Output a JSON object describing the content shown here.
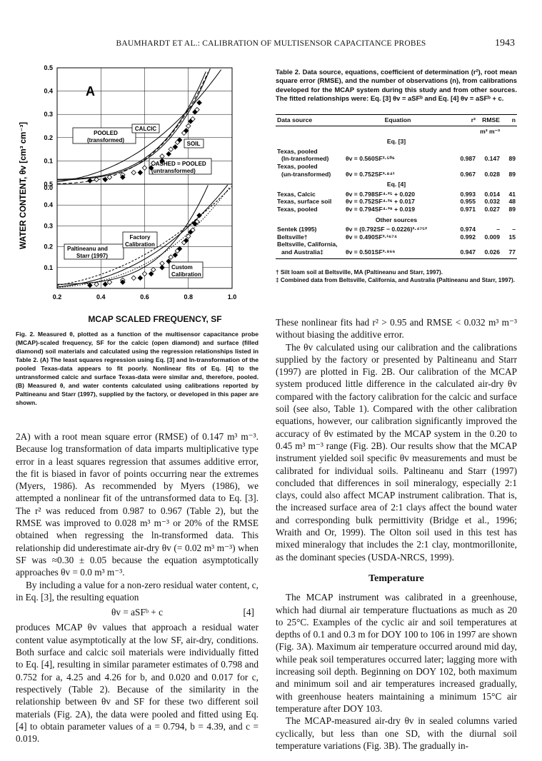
{
  "header": {
    "running_title": "BAUMHARDT ET AL.: CALIBRATION OF MULTISENSOR CAPACITANCE PROBES",
    "page_number": "1943"
  },
  "figure": {
    "y_axis_label": "WATER CONTENT, θv [cm³ cm⁻³]",
    "x_axis_label": "MCAP SCALED FREQUENCY, SF",
    "x_ticks": [
      "0.2",
      "0.4",
      "0.6",
      "0.8",
      "1.0"
    ],
    "panel_a": {
      "letter": "A",
      "y_ticks": [
        "0.0",
        "0.1",
        "0.2",
        "0.3",
        "0.4",
        "0.5"
      ],
      "labels": {
        "pooled": "POOLED",
        "pooled_sub": "(transformed)",
        "calcic": "CALCIC",
        "soil": "SOIL",
        "dashed": "DASHED = POOLED",
        "dashed_sub": "(untransformed)"
      }
    },
    "panel_b": {
      "y_ticks": [
        "0.1",
        "0.2",
        "0.3",
        "0.4",
        "0.5"
      ],
      "labels": {
        "paltineanu": "Paltineanu and",
        "paltineanu_sub": "Starr (1997)",
        "factory": "Factory",
        "factory_sub": "Calibration",
        "custom": "Custom",
        "custom_sub": "Calibration"
      }
    },
    "caption": "Fig. 2. Measured θ, plotted as a function of the multisensor capacitance probe (MCAP)-scaled frequency, SF for the calcic (open diamond) and surface (filled diamond) soil materials and calculated using the regression relationships listed in Table 2. (A) The least squares regression using Eq. [3] and ln-transformation of the pooled Texas-data appears to fit poorly. Nonlinear fits of Eq. [4] to the untransformed calcic and surface Texas-data were similar and, therefore, pooled. (B) Measured θ, and water contents calculated using calibrations reported by Paltineanu and Starr (1997), supplied by the factory, or developed in this paper are shown."
  },
  "chart_data": {
    "type": "scatter",
    "x_label": "MCAP SCALED FREQUENCY, SF",
    "y_label": "WATER CONTENT, θv [cm³ cm⁻³]",
    "xlim": [
      0.2,
      1.0
    ],
    "panel_a_ylim": [
      0.0,
      0.5
    ],
    "panel_b_ylim": [
      0.0,
      0.5
    ],
    "series": [
      {
        "name": "CALCIC",
        "x": [
          0.38,
          0.44,
          0.5,
          0.55,
          0.6,
          0.64,
          0.68,
          0.72,
          0.75,
          0.78,
          0.8,
          0.82,
          0.84
        ],
        "y": [
          0.02,
          0.03,
          0.04,
          0.05,
          0.07,
          0.09,
          0.12,
          0.15,
          0.18,
          0.22,
          0.25,
          0.28,
          0.32
        ]
      },
      {
        "name": "SOIL",
        "x": [
          0.35,
          0.42,
          0.5,
          0.58,
          0.63,
          0.68,
          0.71,
          0.74,
          0.76,
          0.79,
          0.81,
          0.83,
          0.85
        ],
        "y": [
          0.015,
          0.02,
          0.03,
          0.05,
          0.07,
          0.1,
          0.13,
          0.16,
          0.19,
          0.23,
          0.27,
          0.31,
          0.35
        ]
      }
    ]
  },
  "table": {
    "caption": "Table 2. Data source, equations, coefficient of determination (r²), root mean square error (RMSE), and the number of observations (n), from calibrations developed for the MCAP system during this study and from other sources. The fitted relationships were: Eq. [3] θv = aSFᵇ and Eq. [4] θv = aSFᵇ + c.",
    "headers": [
      "Data source",
      "Equation",
      "r²",
      "RMSE",
      "n"
    ],
    "units": "m³ m⁻³",
    "sections": [
      {
        "title": "Eq. [3]",
        "rows": [
          {
            "source": "Texas, pooled",
            "source2": "(ln-transformed)",
            "equation": "θv = 0.560SF²·⁵⁰⁶",
            "r2": "0.987",
            "rmse": "0.147",
            "n": "89"
          },
          {
            "source": "Texas, pooled",
            "source2": "(un-transformed)",
            "equation": "θv = 0.752SF³·⁸⁴¹",
            "r2": "0.967",
            "rmse": "0.028",
            "n": "89"
          }
        ]
      },
      {
        "title": "Eq. [4]",
        "rows": [
          {
            "source": "Texas, Calcic",
            "source2": "",
            "equation": "θv = 0.798SF⁴·²⁵ + 0.020",
            "r2": "0.993",
            "rmse": "0.014",
            "n": "41"
          },
          {
            "source": "Texas, surface soil",
            "source2": "",
            "equation": "θv = 0.752SF⁴·²⁶ + 0.017",
            "r2": "0.955",
            "rmse": "0.032",
            "n": "48"
          },
          {
            "source": "Texas, pooled",
            "source2": "",
            "equation": "θv = 0.794SF⁴·³⁹ + 0.019",
            "r2": "0.971",
            "rmse": "0.027",
            "n": "89"
          }
        ]
      },
      {
        "title": "Other sources",
        "rows": [
          {
            "source": "Sentek (1995)",
            "source2": "",
            "equation": "θv = (0.792SF − 0.0226)²·⁴⁷⁵²",
            "r2": "0.974",
            "rmse": "–",
            "n": "–"
          },
          {
            "source": "Beltsville†",
            "source2": "",
            "equation": "θv = 0.490SF²·¹⁶⁷⁴",
            "r2": "0.992",
            "rmse": "0.009",
            "n": "15"
          },
          {
            "source": "Beltsville, California,",
            "source2": "and Australia‡",
            "equation": "θv = 0.501SF²·⁸⁶⁶",
            "r2": "0.947",
            "rmse": "0.026",
            "n": "77"
          }
        ]
      }
    ],
    "footnote1": "† Silt loam soil at Beltsville, MA (Paltineanu and Starr, 1997).",
    "footnote2": "‡ Combined data from Beltsville, California, and Australia (Paltineanu and Starr, 1997)."
  },
  "body": {
    "left": {
      "p1": "2A) with a root mean square error (RMSE) of 0.147 m³ m⁻³. Because log transformation of data imparts multiplicative type error in a least squares regression that assumes additive error, the fit is biased in favor of points occurring near the extremes (Myers, 1986). As recommended by Myers (1986), we attempted a nonlinear fit of the untransformed data to Eq. [3]. The r² was reduced from 0.987 to 0.967 (Table 2), but the RMSE was improved to 0.028 m³ m⁻³ or 20% of the RMSE obtained when regressing the ln-transformed data. This relationship did underestimate air-dry θv (= 0.02 m³ m⁻³) when SF was ≈0.30 ± 0.05 because the equation asymptotically approaches θv = 0.0 m³ m⁻³.",
      "p2": "By including a value for a non-zero residual water content, c, in Eq. [3], the resulting equation",
      "equation": "θv = aSFᵇ + c",
      "equation_number": "[4]",
      "p3": "produces MCAP θv values that approach a residual water content value asymptotically at the low SF, air-dry, conditions. Both surface and calcic soil materials were individually fitted to Eq. [4], resulting in similar parameter estimates of 0.798 and 0.752 for a, 4.25 and 4.26 for b, and 0.020 and 0.017 for c, respectively (Table 2). Because of the similarity in the relationship between θv and SF for these two different soil materials (Fig. 2A), the data were pooled and fitted using Eq. [4] to obtain parameter values of a = 0.794, b = 4.39, and c = 0.019."
    },
    "right": {
      "p1": "These nonlinear fits had r² > 0.95 and RMSE < 0.032 m³ m⁻³ without biasing the additive error.",
      "p2": "The θv calculated using our calibration and the calibrations supplied by the factory or presented by Paltineanu and Starr (1997) are plotted in Fig. 2B. Our calibration of the MCAP system produced little difference in the calculated air-dry θv compared with the factory calibration for the calcic and surface soil (see also, Table 1). Compared with the other calibration equations, however, our calibration significantly improved the accuracy of θv estimated by the MCAP system in the 0.20 to 0.45 m³ m⁻³ range (Fig. 2B). Our results show that the MCAP instrument yielded soil specific θv measurements and must be calibrated for individual soils. Paltineanu and Starr (1997) concluded that differences in soil mineralogy, especially 2:1 clays, could also affect MCAP instrument calibration. That is, the increased surface area of 2:1 clays affect the bound water and corresponding bulk permittivity (Bridge et al., 1996; Wraith and Or, 1999). The Olton soil used in this test has mixed mineralogy that includes the 2:1 clay, montmorillonite, as the dominant species (USDA-NRCS, 1999).",
      "section_title": "Temperature",
      "p3": "The MCAP instrument was calibrated in a greenhouse, which had diurnal air temperature fluctuations as much as 20 to 25°C. Examples of the cyclic air and soil temperatures at depths of 0.1 and 0.3 m for DOY 100 to 106 in 1997 are shown (Fig. 3A). Maximum air temperature occurred around mid day, while peak soil temperatures occurred later; lagging more with increasing soil depth. Beginning on DOY 102, both maximum and minimum soil and air temperatures increased gradually, with greenhouse heaters maintaining a minimum 15°C air temperature after DOY 103.",
      "p4": "The MCAP-measured air-dry θv in sealed columns varied cyclically, but less than one SD, with the diurnal soil temperature variations (Fig. 3B). The gradually in-"
    }
  }
}
